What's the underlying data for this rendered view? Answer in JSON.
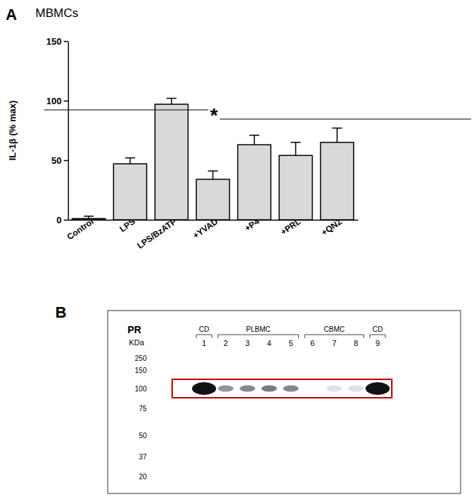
{
  "chart_data": {
    "type": "bar",
    "panel": "A",
    "title": "MBMCs",
    "y_label": "IL-1β (% max)",
    "categories": [
      "Control",
      "LPS",
      "LPS/BzATP",
      "+YVAD",
      "+P4",
      "+PRL",
      "+QNZ"
    ],
    "values": [
      1,
      47,
      97,
      34,
      63,
      54,
      65
    ],
    "errors": [
      2,
      5,
      5,
      7,
      8,
      11,
      12
    ],
    "color": "#d9d9d9",
    "ylim": [
      0,
      150
    ],
    "yticks": [
      0,
      50,
      100,
      150
    ],
    "annotation": "*"
  },
  "blot": {
    "panel": "B",
    "title": "PR",
    "unit": "KDa",
    "markers": [
      250,
      150,
      100,
      75,
      50,
      37,
      20
    ],
    "groups": [
      {
        "label": "CD",
        "lanes": [
          1
        ]
      },
      {
        "label": "PLBMC",
        "lanes": [
          2,
          3,
          4,
          5
        ]
      },
      {
        "label": "CBMC",
        "lanes": [
          6,
          7,
          8
        ]
      },
      {
        "label": "CD",
        "lanes": [
          9
        ]
      }
    ],
    "lanes": [
      1,
      2,
      3,
      4,
      5,
      6,
      7,
      8,
      9
    ],
    "band_intensity": [
      1,
      0.45,
      0.5,
      0.55,
      0.5,
      0,
      0.12,
      0.12,
      1
    ]
  }
}
